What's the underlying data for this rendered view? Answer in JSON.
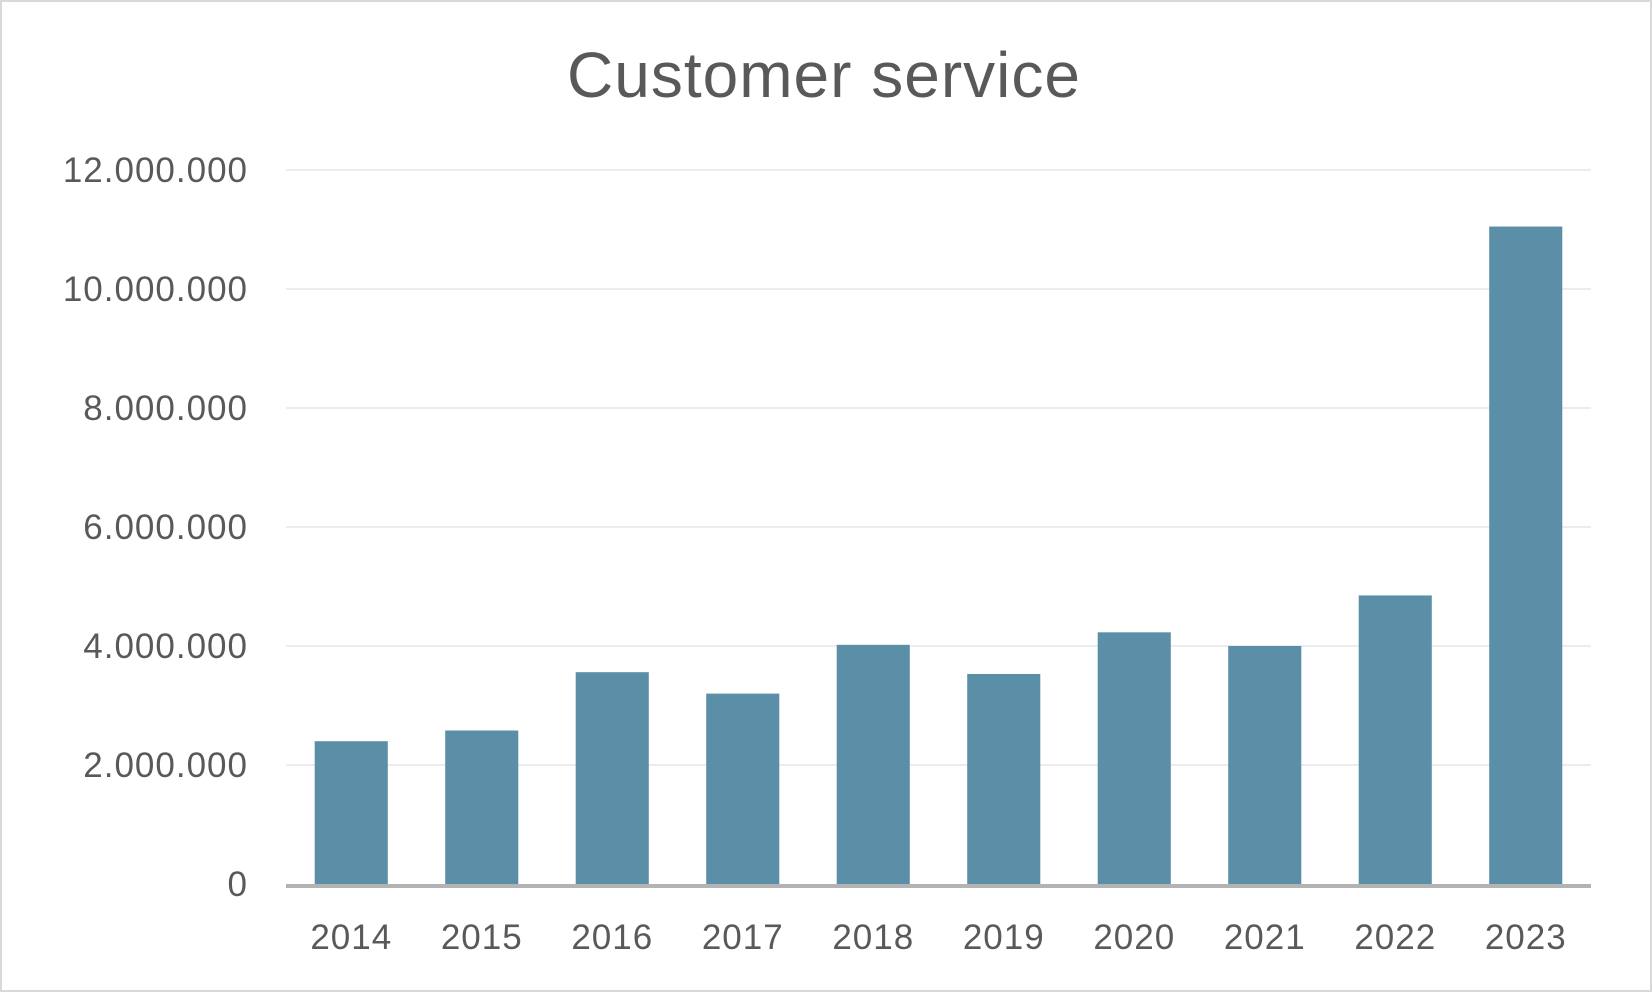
{
  "chart_data": {
    "type": "bar",
    "title": "Customer service",
    "xlabel": "",
    "ylabel": "",
    "categories": [
      "2014",
      "2015",
      "2016",
      "2017",
      "2018",
      "2019",
      "2020",
      "2021",
      "2022",
      "2023"
    ],
    "values": [
      2400000,
      2580000,
      3560000,
      3200000,
      4020000,
      3530000,
      4230000,
      4000000,
      4850000,
      11050000
    ],
    "ylim": [
      0,
      12000000
    ],
    "yticks": [
      0,
      2000000,
      4000000,
      6000000,
      8000000,
      10000000,
      12000000
    ],
    "ytick_labels": [
      "0",
      "2.000.000",
      "4.000.000",
      "6.000.000",
      "8.000.000",
      "10.000.000",
      "12.000.000"
    ],
    "grid": true,
    "legend": "none",
    "colors": {
      "bar": "#5b8fa8",
      "grid": "#ececec",
      "axis": "#b3b3b3",
      "text": "#595959",
      "border": "#d9d9d9"
    }
  }
}
